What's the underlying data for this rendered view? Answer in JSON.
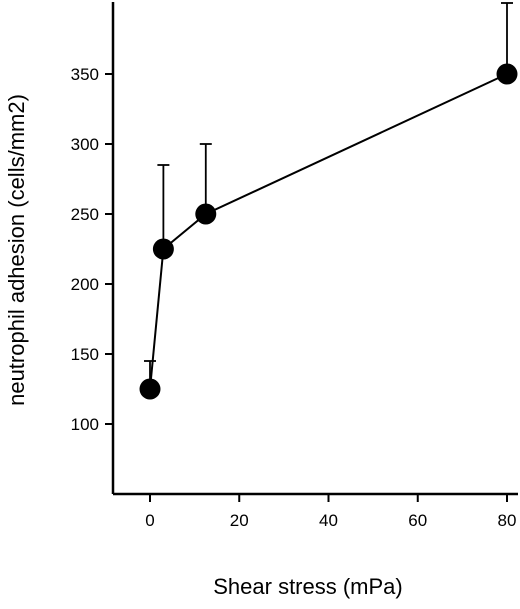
{
  "chart_data": {
    "type": "scatter",
    "title": "",
    "xlabel": "Shear stress (mPa)",
    "ylabel": "neutrophil adhesion (cells/mm2)",
    "xlim": [
      -8,
      82
    ],
    "ylim": [
      95,
      400
    ],
    "x_ticks": [
      0,
      20,
      40,
      60,
      80
    ],
    "y_ticks": [
      100,
      150,
      200,
      250,
      300,
      350
    ],
    "grid": false,
    "legend": "none",
    "connected": true,
    "colors": {
      "marker": "#000000",
      "line": "#000000"
    },
    "series": [
      {
        "points": [
          {
            "x": 0,
            "y": 125,
            "error_upper": 145
          },
          {
            "x": 3,
            "y": 225,
            "error_upper": 285
          },
          {
            "x": 12.5,
            "y": 250,
            "error_upper": 300
          },
          {
            "x": 80,
            "y": 350,
            "error_upper": 402
          }
        ]
      }
    ]
  }
}
